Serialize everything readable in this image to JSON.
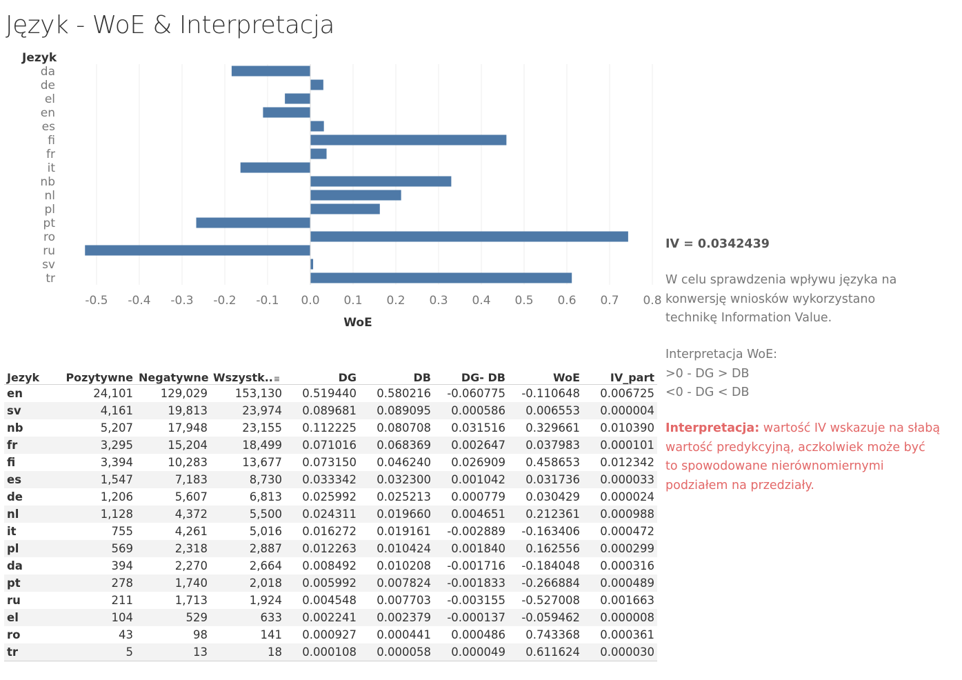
{
  "title": "Język - WoE & Interpretacja",
  "chart_data": {
    "type": "bar",
    "orientation": "horizontal",
    "ylabel": "Jezyk",
    "xlabel": "WoE",
    "categories": [
      "da",
      "de",
      "el",
      "en",
      "es",
      "fi",
      "fr",
      "it",
      "nb",
      "nl",
      "pl",
      "pt",
      "ro",
      "ru",
      "sv",
      "tr"
    ],
    "values": [
      -0.184048,
      0.030429,
      -0.059462,
      -0.110648,
      0.031736,
      0.458653,
      0.037983,
      -0.163406,
      0.329661,
      0.212361,
      0.162556,
      -0.266884,
      0.743368,
      -0.527008,
      0.006553,
      0.611624
    ],
    "xticks": [
      "-0.5",
      "-0.4",
      "-0.3",
      "-0.2",
      "-0.1",
      "0.0",
      "0.1",
      "0.2",
      "0.3",
      "0.4",
      "0.5",
      "0.6",
      "0.7",
      "0.8"
    ],
    "xlim": [
      -0.55,
      0.8
    ],
    "bar_color": "#4e79a7",
    "grid": "vertical",
    "legend": "none"
  },
  "side": {
    "iv": "IV = 0.0342439",
    "desc_lines": [
      "W celu sprawdzenia wpływu języka na",
      "konwersję wniosków wykorzystano",
      "technikę Information Value."
    ],
    "interp_lines": [
      "Interpretacja WoE:",
      ">0 - DG > DB",
      "<0 - DG < DB"
    ],
    "conclusion_label": "Interpretacja:",
    "conclusion_lines": [
      " wartość IV wskazuje na słabą",
      "wartość predykcyjną, aczkolwiek  może być",
      "to spowodowane nierównomiernymi",
      "podziałem na przedziały."
    ],
    "accent_color": "#e36868"
  },
  "table": {
    "headers": [
      "Jezyk",
      "Pozytywne",
      "Negatywne",
      "Wszystk..",
      "DG",
      "DB",
      "DG- DB",
      "WoE",
      "IV_part"
    ],
    "sort_icon": "sort-descending-icon",
    "rows": [
      [
        "en",
        "24,101",
        "129,029",
        "153,130",
        "0.519440",
        "0.580216",
        "-0.060775",
        "-0.110648",
        "0.006725"
      ],
      [
        "sv",
        "4,161",
        "19,813",
        "23,974",
        "0.089681",
        "0.089095",
        "0.000586",
        "0.006553",
        "0.000004"
      ],
      [
        "nb",
        "5,207",
        "17,948",
        "23,155",
        "0.112225",
        "0.080708",
        "0.031516",
        "0.329661",
        "0.010390"
      ],
      [
        "fr",
        "3,295",
        "15,204",
        "18,499",
        "0.071016",
        "0.068369",
        "0.002647",
        "0.037983",
        "0.000101"
      ],
      [
        "fi",
        "3,394",
        "10,283",
        "13,677",
        "0.073150",
        "0.046240",
        "0.026909",
        "0.458653",
        "0.012342"
      ],
      [
        "es",
        "1,547",
        "7,183",
        "8,730",
        "0.033342",
        "0.032300",
        "0.001042",
        "0.031736",
        "0.000033"
      ],
      [
        "de",
        "1,206",
        "5,607",
        "6,813",
        "0.025992",
        "0.025213",
        "0.000779",
        "0.030429",
        "0.000024"
      ],
      [
        "nl",
        "1,128",
        "4,372",
        "5,500",
        "0.024311",
        "0.019660",
        "0.004651",
        "0.212361",
        "0.000988"
      ],
      [
        "it",
        "755",
        "4,261",
        "5,016",
        "0.016272",
        "0.019161",
        "-0.002889",
        "-0.163406",
        "0.000472"
      ],
      [
        "pl",
        "569",
        "2,318",
        "2,887",
        "0.012263",
        "0.010424",
        "0.001840",
        "0.162556",
        "0.000299"
      ],
      [
        "da",
        "394",
        "2,270",
        "2,664",
        "0.008492",
        "0.010208",
        "-0.001716",
        "-0.184048",
        "0.000316"
      ],
      [
        "pt",
        "278",
        "1,740",
        "2,018",
        "0.005992",
        "0.007824",
        "-0.001833",
        "-0.266884",
        "0.000489"
      ],
      [
        "ru",
        "211",
        "1,713",
        "1,924",
        "0.004548",
        "0.007703",
        "-0.003155",
        "-0.527008",
        "0.001663"
      ],
      [
        "el",
        "104",
        "529",
        "633",
        "0.002241",
        "0.002379",
        "-0.000137",
        "-0.059462",
        "0.000008"
      ],
      [
        "ro",
        "43",
        "98",
        "141",
        "0.000927",
        "0.000441",
        "0.000486",
        "0.743368",
        "0.000361"
      ],
      [
        "tr",
        "5",
        "13",
        "18",
        "0.000108",
        "0.000058",
        "0.000049",
        "0.611624",
        "0.000030"
      ]
    ]
  }
}
